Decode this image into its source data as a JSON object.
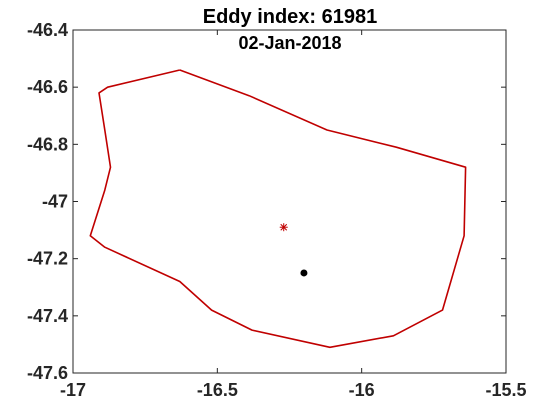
{
  "chart_data": {
    "type": "scatter",
    "title": "Eddy index: 61981",
    "subtitle": "02-Jan-2018",
    "xlabel": "",
    "ylabel": "",
    "xlim": [
      -17,
      -15.5
    ],
    "ylim": [
      -47.6,
      -46.4
    ],
    "xticks": [
      -17,
      -16.5,
      -16,
      -15.5
    ],
    "xtick_labels": [
      "-17",
      "-16.5",
      "-16",
      "-15.5"
    ],
    "yticks": [
      -46.4,
      -46.6,
      -46.8,
      -47,
      -47.2,
      -47.4,
      -47.6
    ],
    "ytick_labels": [
      "-46.4",
      "-46.6",
      "-46.8",
      "-47",
      "-47.2",
      "-47.4",
      "-47.6"
    ],
    "grid": false,
    "series": [
      {
        "kind": "contour",
        "color": "#c00000",
        "points": [
          [
            -16.63,
            -46.54
          ],
          [
            -16.39,
            -46.63
          ],
          [
            -16.12,
            -46.75
          ],
          [
            -15.88,
            -46.81
          ],
          [
            -15.64,
            -46.88
          ],
          [
            -15.645,
            -47.12
          ],
          [
            -15.72,
            -47.38
          ],
          [
            -15.89,
            -47.47
          ],
          [
            -16.11,
            -47.51
          ],
          [
            -16.38,
            -47.45
          ],
          [
            -16.52,
            -47.38
          ],
          [
            -16.63,
            -47.28
          ],
          [
            -16.89,
            -47.16
          ],
          [
            -16.94,
            -47.12
          ],
          [
            -16.89,
            -46.96
          ],
          [
            -16.87,
            -46.88
          ],
          [
            -16.89,
            -46.75
          ],
          [
            -16.91,
            -46.62
          ],
          [
            -16.88,
            -46.6
          ],
          [
            -16.63,
            -46.54
          ]
        ]
      },
      {
        "kind": "marker",
        "marker": "asterisk",
        "color": "#c00000",
        "points": [
          [
            -16.27,
            -47.09
          ]
        ]
      },
      {
        "kind": "marker",
        "marker": "dot",
        "color": "#000000",
        "points": [
          [
            -16.2,
            -47.25
          ]
        ]
      }
    ]
  }
}
